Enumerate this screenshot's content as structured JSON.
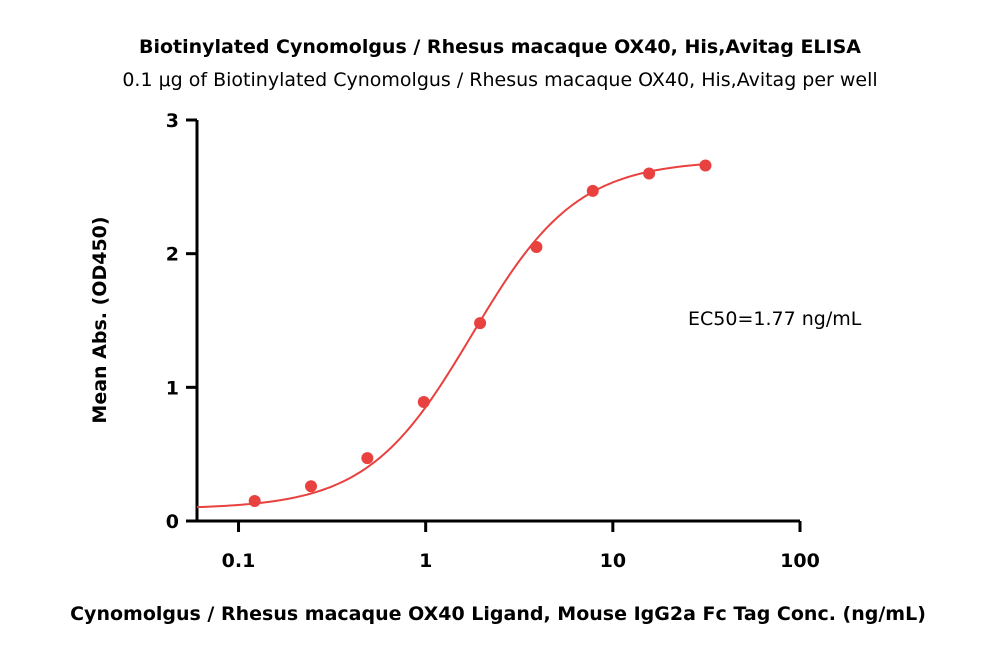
{
  "chart_data": {
    "type": "scatter",
    "title": "Biotinylated Cynomolgus / Rhesus macaque OX40, His,Avitag ELISA",
    "subtitle": "0.1 μg of Biotinylated Cynomolgus / Rhesus macaque OX40, His,Avitag per well",
    "xlabel": "Cynomolgus / Rhesus macaque OX40 Ligand, Mouse IgG2a Fc Tag Conc. (ng/mL)",
    "ylabel": "Mean Abs. (OD450)",
    "x_scale": "log",
    "xlim": [
      0.06,
      100
    ],
    "ylim": [
      0,
      3
    ],
    "x_ticks": [
      {
        "value": 0.1,
        "label": "0.1"
      },
      {
        "value": 1,
        "label": "1"
      },
      {
        "value": 10,
        "label": "10"
      },
      {
        "value": 100,
        "label": "100"
      }
    ],
    "y_ticks": [
      {
        "value": 0,
        "label": "0"
      },
      {
        "value": 1,
        "label": "1"
      },
      {
        "value": 2,
        "label": "2"
      },
      {
        "value": 3,
        "label": "3"
      }
    ],
    "grid": false,
    "series": [
      {
        "color": "#e8413f",
        "x": [
          0.122,
          0.244,
          0.488,
          0.977,
          1.953,
          3.906,
          7.813,
          15.625,
          31.25
        ],
        "y": [
          0.15,
          0.26,
          0.47,
          0.89,
          1.48,
          2.05,
          2.47,
          2.6,
          2.66
        ],
        "fit": {
          "model": "4PL",
          "bottom": 0.09,
          "top": 2.7,
          "ec50": 1.77,
          "hill": 1.55
        }
      }
    ],
    "annotations": [
      {
        "text": "EC50=1.77 ng/mL"
      }
    ]
  }
}
